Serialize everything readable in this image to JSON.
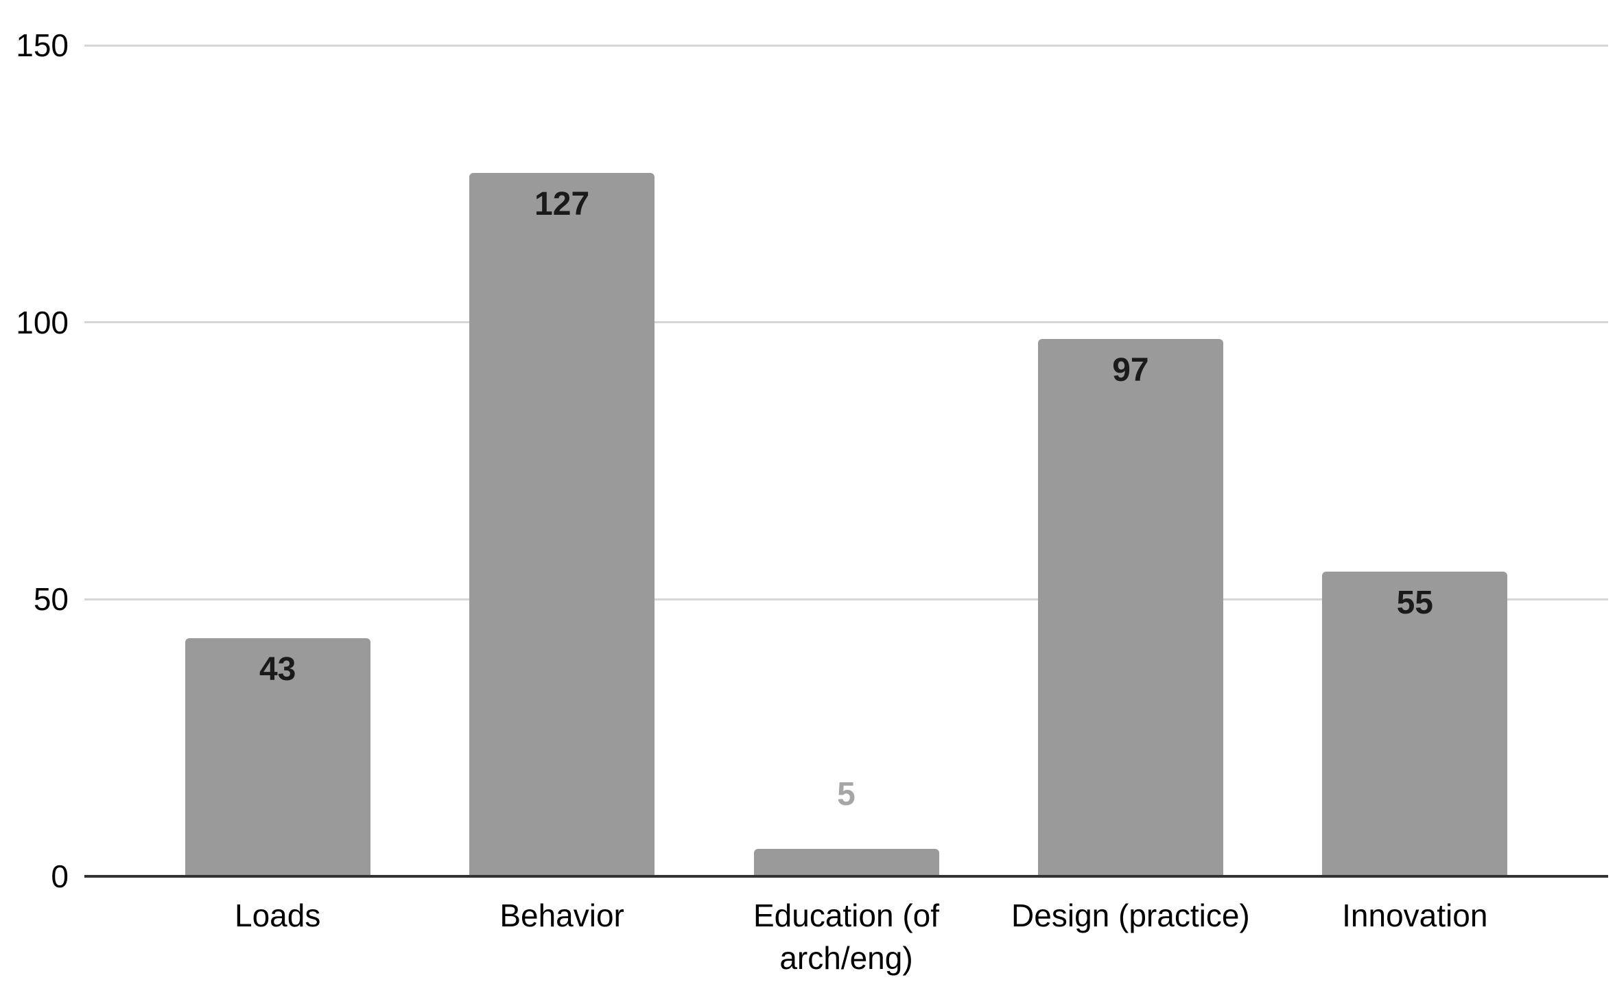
{
  "chart_data": {
    "type": "bar",
    "title": "",
    "xlabel": "",
    "ylabel": "",
    "categories": [
      "Loads",
      "Behavior",
      "Education (of arch/eng)",
      "Design (practice)",
      "Innovation"
    ],
    "values": [
      43,
      127,
      5,
      97,
      55
    ],
    "value_labels": [
      "43",
      "127",
      "5",
      "97",
      "55"
    ],
    "ylim": [
      0,
      150
    ],
    "yticks": [
      0,
      50,
      100,
      150
    ],
    "ytick_labels": [
      "0",
      "50",
      "100",
      "150"
    ],
    "grid": "horizontal",
    "legend": "none",
    "colors": {
      "bar_fill": "#9a9a9a",
      "value_label_inside": "#1a1a1a",
      "value_label_outside": "#a6a6a6",
      "gridline": "#d6d6d6",
      "axis_line": "#333333",
      "tick_label": "#000000",
      "category_label": "#000000",
      "background": "#ffffff"
    }
  }
}
